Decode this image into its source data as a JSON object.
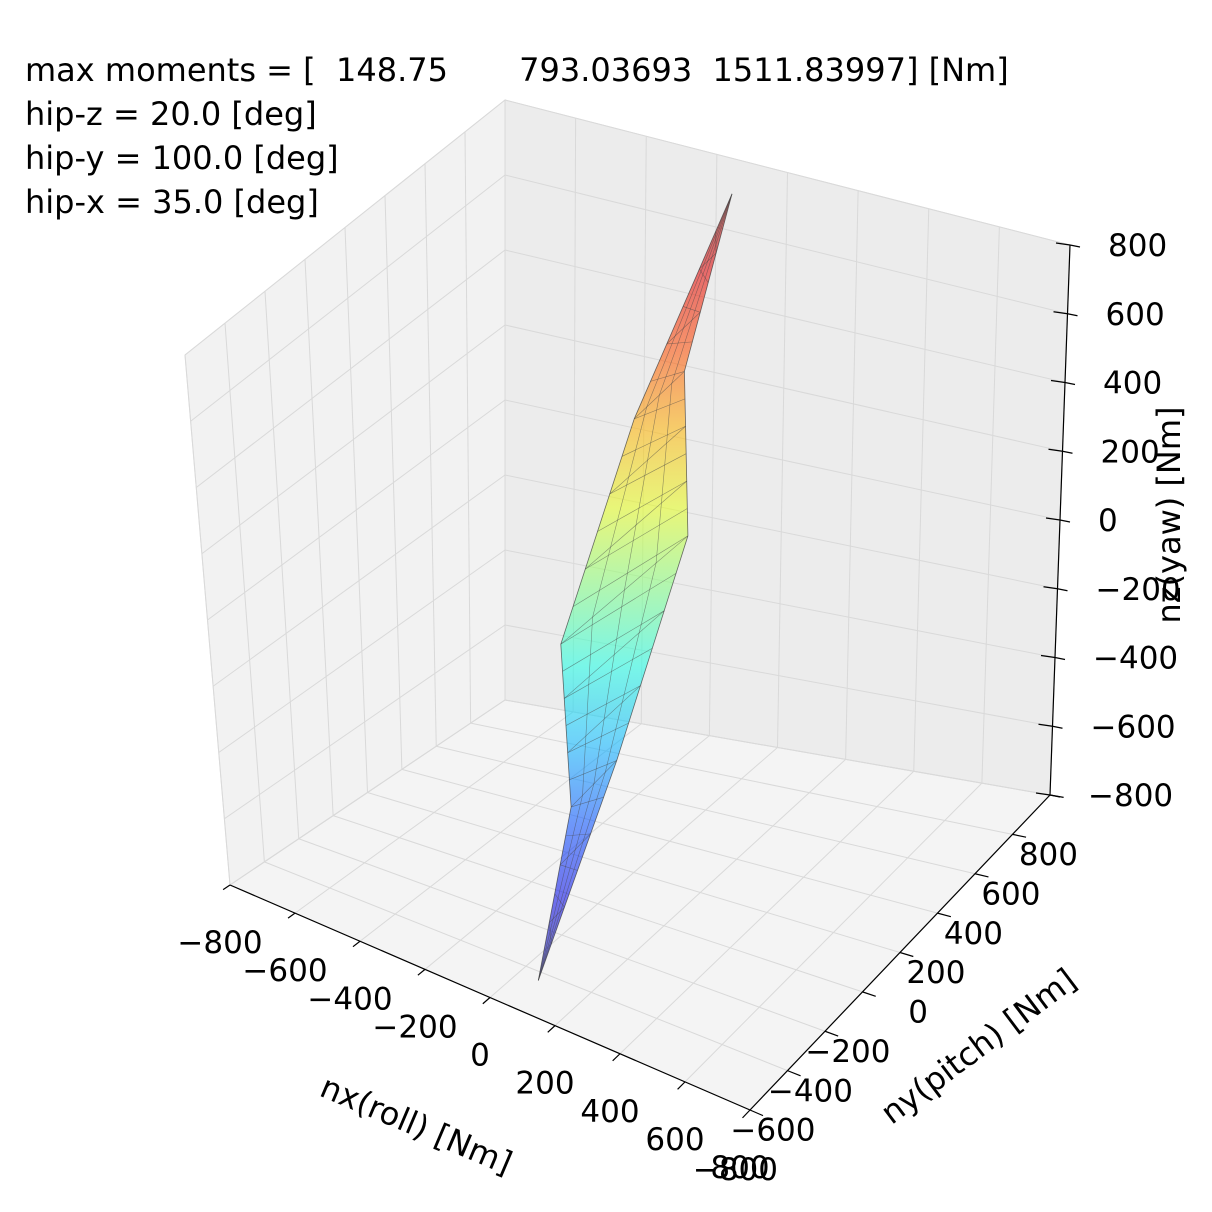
{
  "chart_data": {
    "type": "surface3d",
    "annotations": [
      "max moments = [  148.75       793.03693  1511.83997] [Nm]",
      "hip-z = 20.0 [deg]",
      "hip-y = 100.0 [deg]",
      "hip-x = 35.0 [deg]"
    ],
    "xlabel": "nx(roll) [Nm]",
    "ylabel": "ny(pitch) [Nm]",
    "zlabel": "nz(yaw) [Nm]",
    "xlim": [
      -800,
      800
    ],
    "ylim": [
      -800,
      800
    ],
    "zlim": [
      -800,
      800
    ],
    "x_ticks": [
      "−800",
      "−600",
      "−400",
      "−200",
      "0",
      "200",
      "400",
      "600",
      "800"
    ],
    "y_ticks": [
      "−800",
      "−600",
      "−400",
      "−200",
      "0",
      "200",
      "400",
      "600",
      "800"
    ],
    "z_ticks": [
      "−800",
      "−600",
      "−400",
      "−200",
      "0",
      "200",
      "400",
      "600",
      "800"
    ],
    "grid": true,
    "colormap": "jet",
    "surface_alpha": 0.55,
    "surface_outline": [
      [
        -60,
        640,
        800
      ],
      [
        -40,
        380,
        430
      ],
      [
        -5,
        330,
        0
      ],
      [
        30,
        -120,
        -420
      ],
      [
        60,
        -640,
        -800
      ],
      [
        40,
        -380,
        -430
      ],
      [
        5,
        -330,
        0
      ],
      [
        -30,
        120,
        420
      ]
    ]
  }
}
